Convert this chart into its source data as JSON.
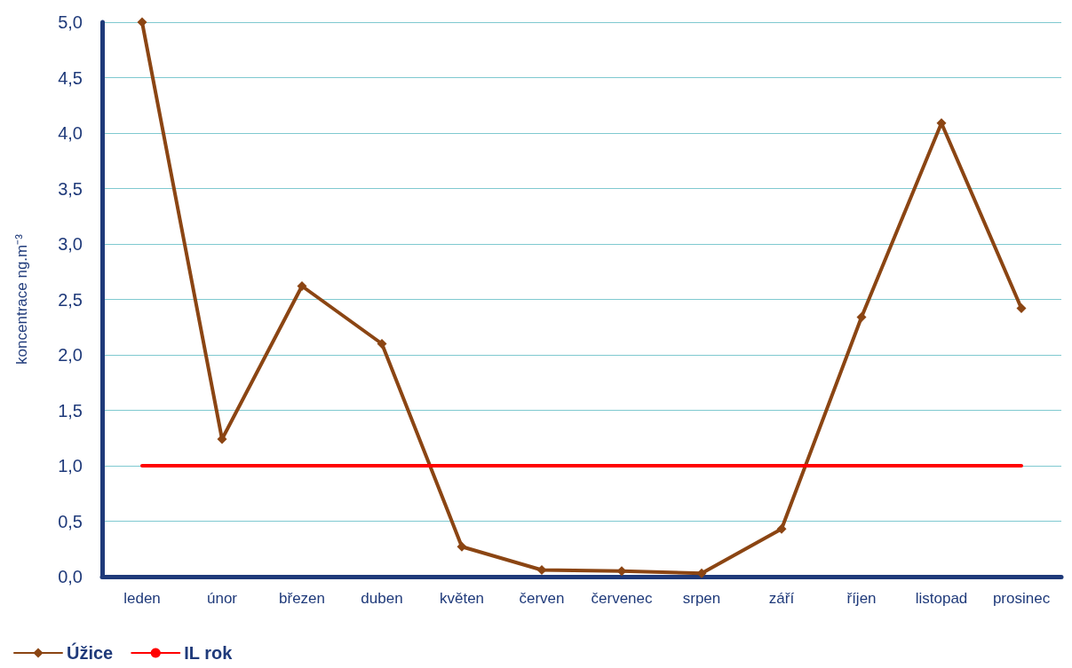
{
  "chart_data": {
    "type": "line",
    "ylabel": "koncentrace ng.m⁻³",
    "categories": [
      "leden",
      "únor",
      "březen",
      "duben",
      "květen",
      "červen",
      "červenec",
      "srpen",
      "září",
      "říjen",
      "listopad",
      "prosinec"
    ],
    "series": [
      {
        "name": "Úžice",
        "color": "#8b4513",
        "marker": "diamond",
        "values": [
          5.0,
          1.24,
          2.62,
          2.1,
          0.27,
          0.06,
          0.05,
          0.03,
          0.43,
          2.34,
          4.09,
          2.42
        ]
      },
      {
        "name": "IL rok",
        "color": "#ff0000",
        "marker": "none",
        "values": [
          1,
          1,
          1,
          1,
          1,
          1,
          1,
          1,
          1,
          1,
          1,
          1
        ]
      }
    ],
    "ylim": [
      0,
      5
    ],
    "yticks": [
      {
        "value": 0,
        "label": "0,0"
      },
      {
        "value": 0.5,
        "label": "0,5"
      },
      {
        "value": 1,
        "label": "1,0"
      },
      {
        "value": 1.5,
        "label": "1,5"
      },
      {
        "value": 2,
        "label": "2,0"
      },
      {
        "value": 2.5,
        "label": "2,5"
      },
      {
        "value": 3,
        "label": "3,0"
      },
      {
        "value": 3.5,
        "label": "3,5"
      },
      {
        "value": 4,
        "label": "4,0"
      },
      {
        "value": 4.5,
        "label": "4,5"
      },
      {
        "value": 5,
        "label": "5,0"
      }
    ],
    "grid": "y",
    "legend": "bottom left",
    "line_style": "solid"
  }
}
